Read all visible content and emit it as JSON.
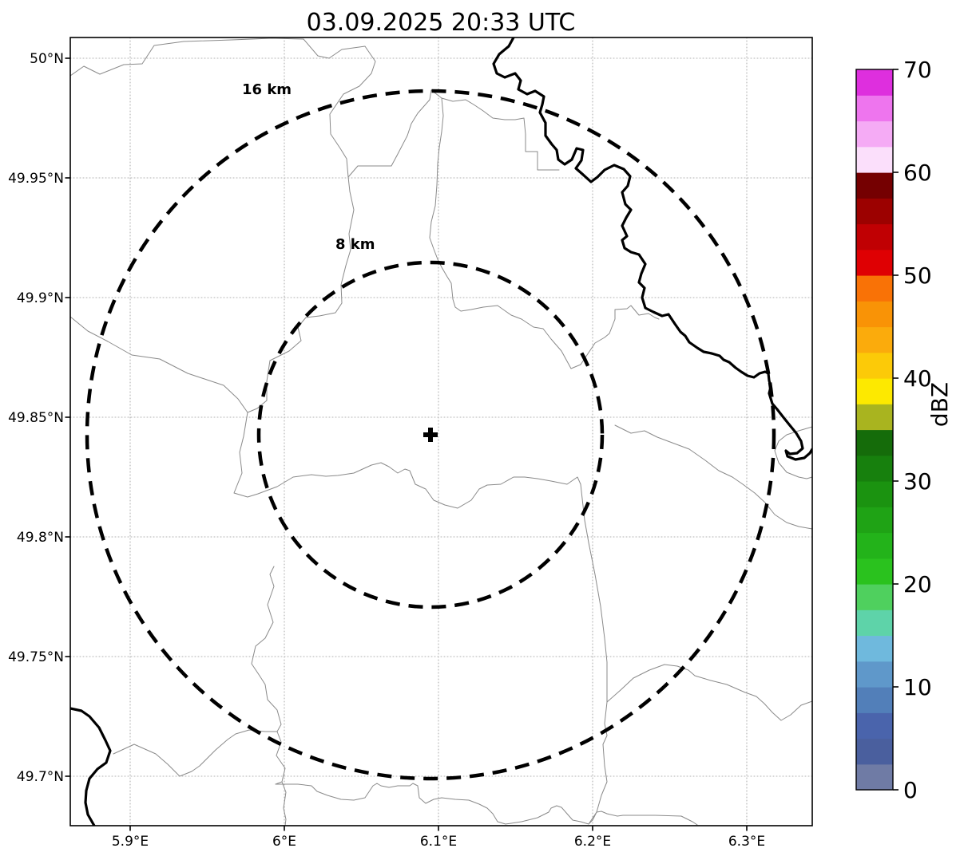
{
  "figure": {
    "title": "03.09.2025 20:33 UTC"
  },
  "map": {
    "x_axis_ticks": [
      "5.9°E",
      "6°E",
      "6.1°E",
      "6.2°E",
      "6.3°E"
    ],
    "y_axis_ticks": [
      "50°N",
      "49.95°N",
      "49.9°N",
      "49.85°N",
      "49.8°N",
      "49.75°N",
      "49.7°N"
    ],
    "range_rings": [
      {
        "label": "16 km",
        "radius_km": 16
      },
      {
        "label": "8 km",
        "radius_km": 8
      }
    ],
    "marker": {
      "name": "radar-site-cross"
    }
  },
  "colorbar": {
    "label": "dBZ",
    "tick_labels": [
      "0",
      "10",
      "20",
      "30",
      "40",
      "50",
      "60",
      "70"
    ],
    "vmin": 0,
    "vmax": 70,
    "segment_step": 2.5,
    "colors": [
      "#6f7ba5",
      "#4a5f9e",
      "#4a64ac",
      "#527fb9",
      "#5f98ca",
      "#6fb9dd",
      "#5ed3a9",
      "#4fd05e",
      "#2ac21e",
      "#23b31a",
      "#1fa315",
      "#1b9310",
      "#17800d",
      "#156c0a",
      "#a9b41f",
      "#fde900",
      "#fcca08",
      "#fbab0c",
      "#f99306",
      "#f97206",
      "#df0003",
      "#c00003",
      "#9c0100",
      "#750001",
      "#fbdffb",
      "#f5abf5",
      "#ee75ee",
      "#de2fde"
    ]
  },
  "styles": {
    "background": "#ffffff",
    "grid_color": "#b0b0b0",
    "boundary_color": "#8a8a8a",
    "border_color": "#000000",
    "ring_color": "#000000"
  }
}
